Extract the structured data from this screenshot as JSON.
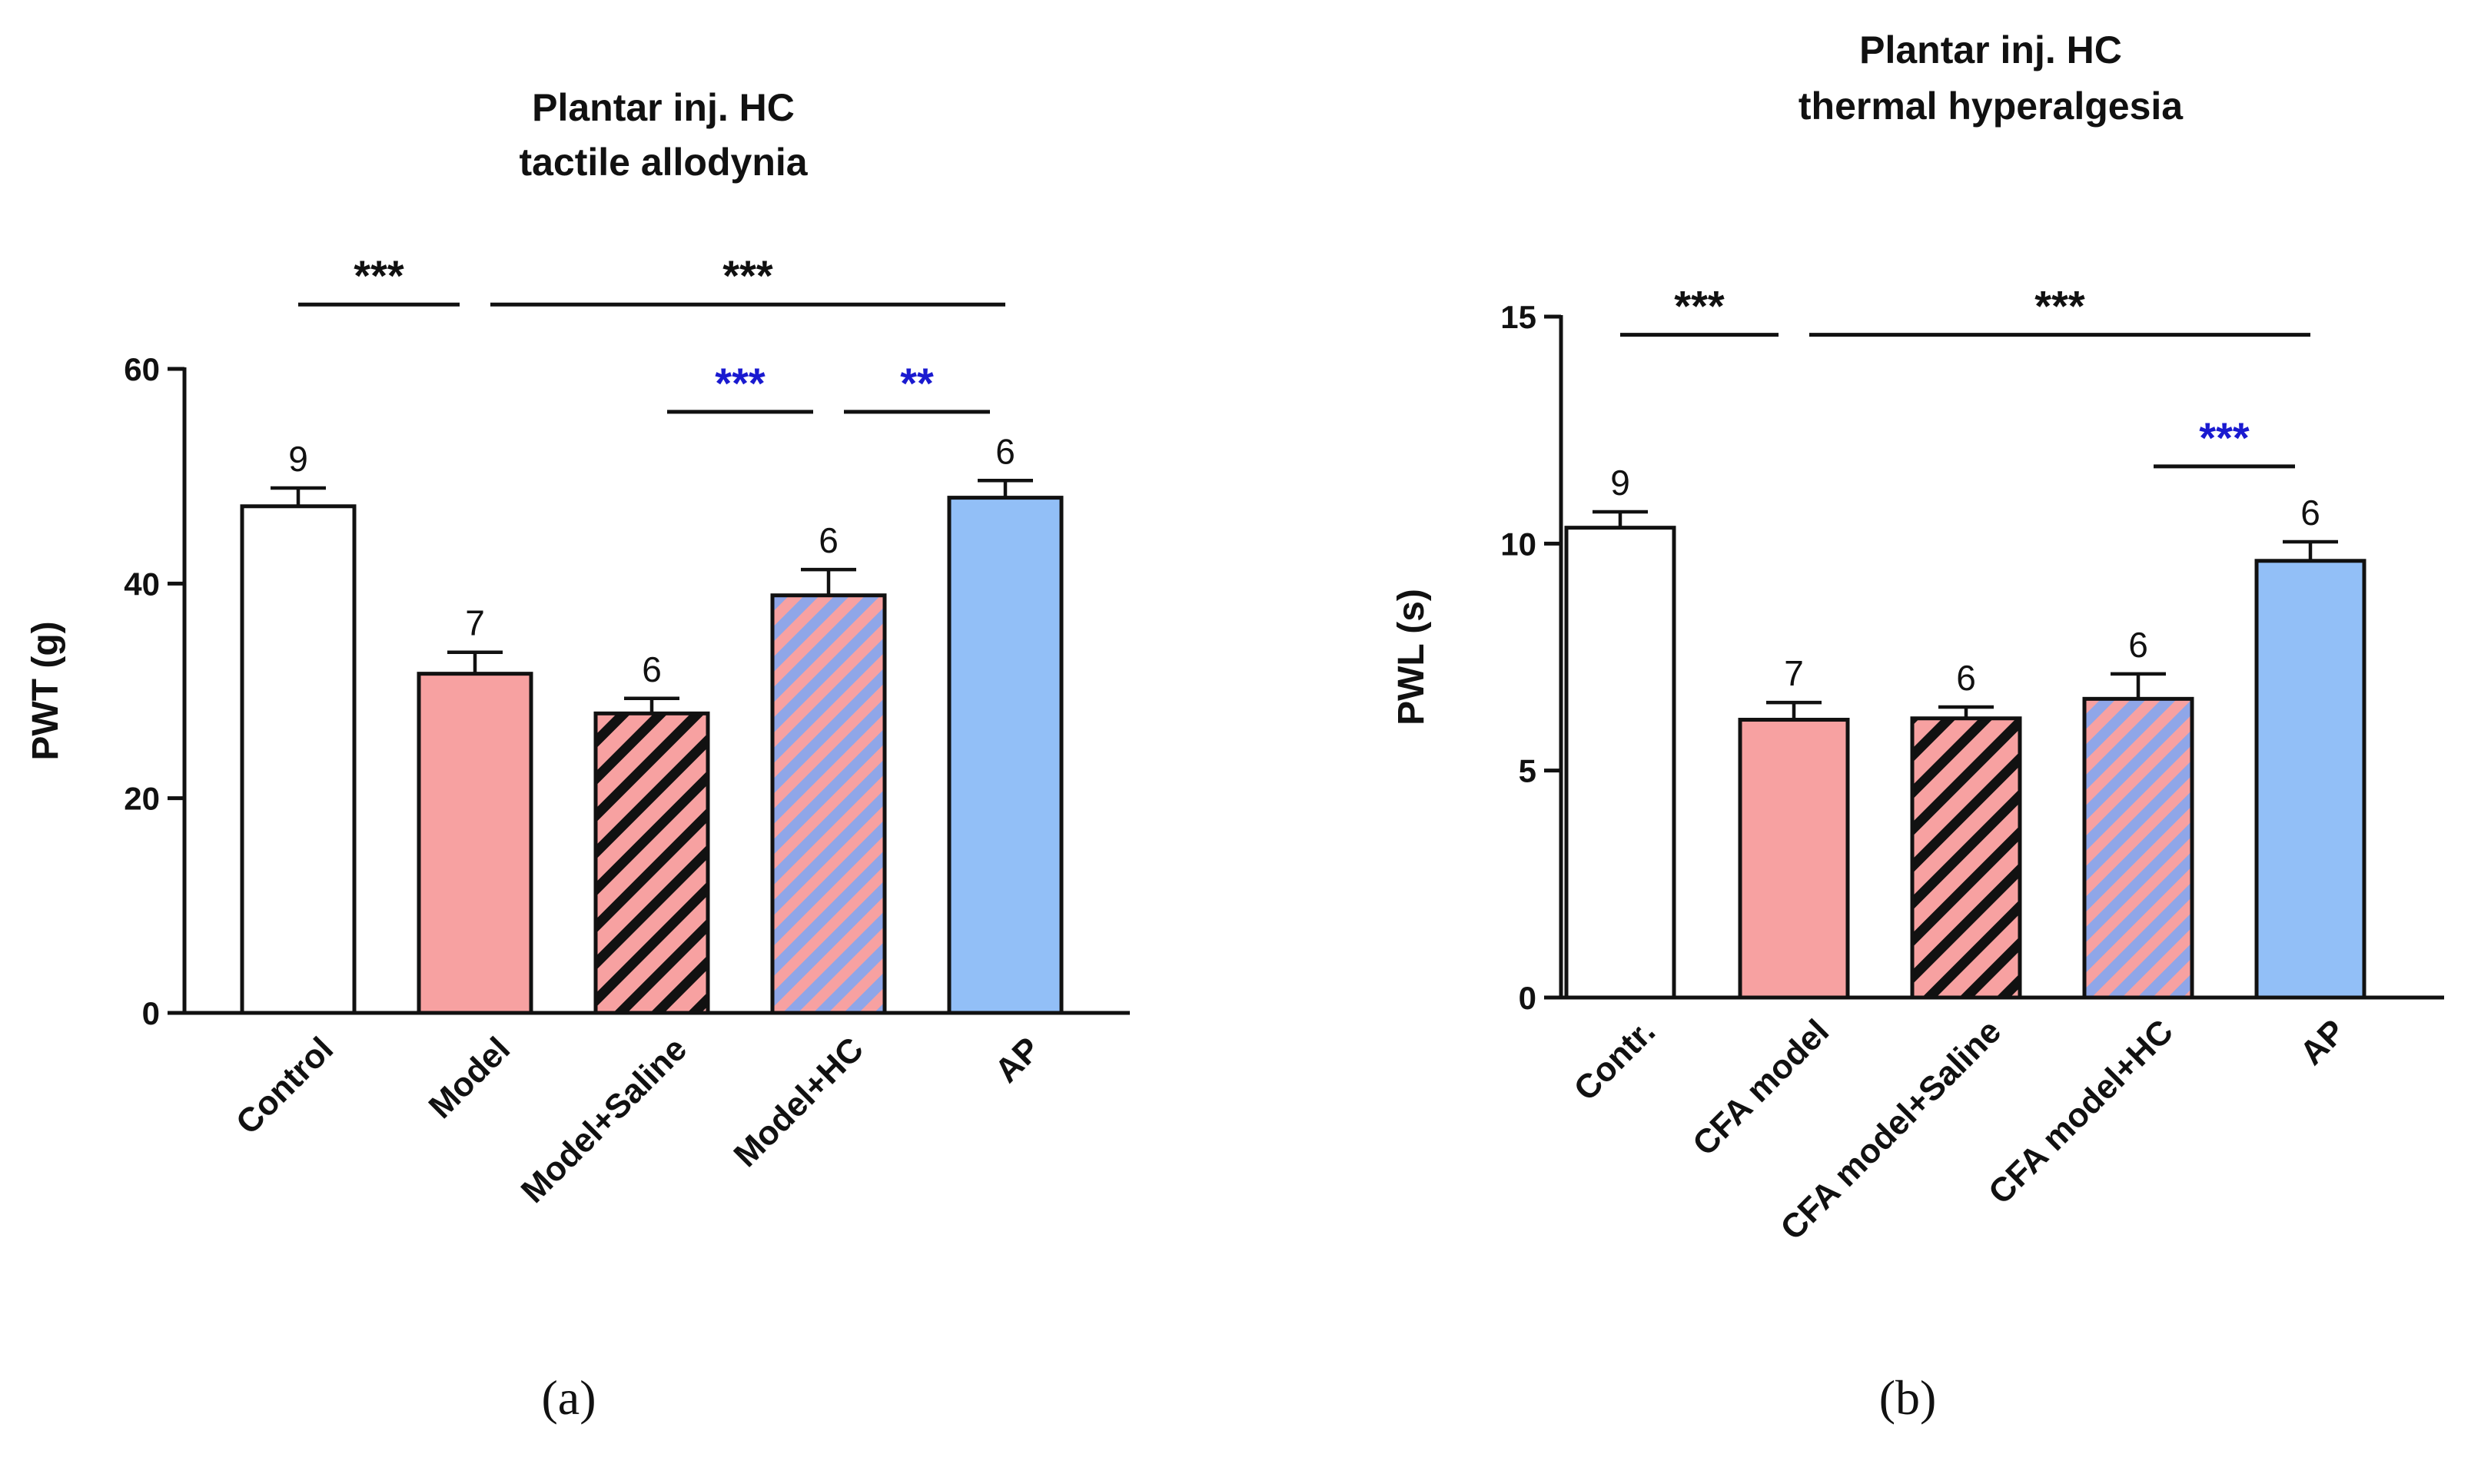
{
  "colors": {
    "control": "#ffffff",
    "model": "#f7a1a1",
    "saline_stripe": "#111111",
    "hc_stripe": "#8fa6e8",
    "ap": "#92bff7",
    "blue_sig": "#1a1ad0",
    "black_sig": "#111111"
  },
  "chart_data": [
    {
      "type": "bar",
      "panel_label": "(a)",
      "title": [
        "Plantar inj. HC",
        "tactile allodynia"
      ],
      "ylabel": "PWT (g)",
      "ylim": [
        0,
        60
      ],
      "yticks": [
        0,
        20,
        40,
        60
      ],
      "categories": [
        "Control",
        "Model",
        "Model+Saline",
        "Model+HC",
        "AP"
      ],
      "values": [
        47.2,
        31.6,
        27.9,
        38.9,
        48.0
      ],
      "errors": [
        1.7,
        2.0,
        1.4,
        2.4,
        1.6
      ],
      "n": [
        "9",
        "7",
        "6",
        "6",
        "6"
      ],
      "fills": [
        "control",
        "model",
        "saline",
        "hc",
        "ap"
      ],
      "significance": [
        {
          "from": 0,
          "to": 1,
          "label": "***",
          "color": "black",
          "y": 66
        },
        {
          "from": 1,
          "to": 4,
          "label": "***",
          "color": "black",
          "y": 66
        },
        {
          "from": 2,
          "to": 3,
          "label": "***",
          "color": "blue",
          "y": 56
        },
        {
          "from": 3,
          "to": 4,
          "label": "**",
          "color": "blue",
          "y": 56
        }
      ]
    },
    {
      "type": "bar",
      "panel_label": "(b)",
      "title": [
        "Plantar inj. HC",
        "thermal hyperalgesia"
      ],
      "ylabel": "PWL (s)",
      "ylim": [
        0,
        15
      ],
      "yticks": [
        0,
        5,
        10,
        15
      ],
      "categories": [
        "Contr.",
        "CFA model",
        "CFA model+Saline",
        "CFA model+HC",
        "AP"
      ],
      "values": [
        10.35,
        6.12,
        6.15,
        6.58,
        9.62
      ],
      "errors": [
        0.35,
        0.38,
        0.25,
        0.55,
        0.42
      ],
      "n": [
        "9",
        "7",
        "6",
        "6",
        "6"
      ],
      "fills": [
        "control",
        "model",
        "saline",
        "hc",
        "ap"
      ],
      "significance": [
        {
          "from": 0,
          "to": 1,
          "label": "***",
          "color": "black",
          "y": 14.6
        },
        {
          "from": 1,
          "to": 4,
          "label": "***",
          "color": "black",
          "y": 14.6
        },
        {
          "from": 3,
          "to": 4,
          "label": "***",
          "color": "blue",
          "y": 11.7
        }
      ]
    }
  ]
}
